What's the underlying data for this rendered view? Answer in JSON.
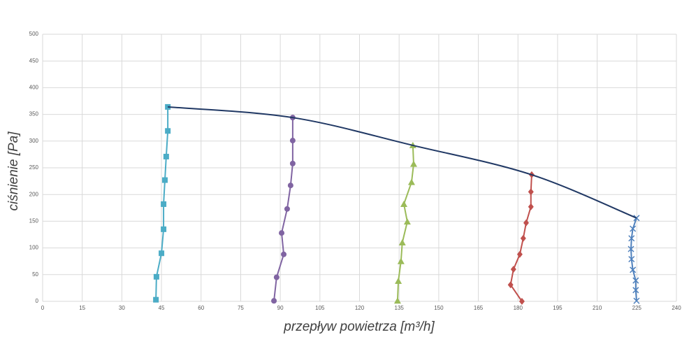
{
  "chart_data": {
    "type": "scatter",
    "xlabel": "przepływ powietrza [m³/h]",
    "ylabel": "ciśnienie [Pa]",
    "xlim": [
      0,
      240
    ],
    "ylim": [
      0,
      500
    ],
    "xticks": [
      0,
      15,
      30,
      45,
      60,
      75,
      90,
      105,
      120,
      135,
      150,
      165,
      180,
      195,
      210,
      225,
      240
    ],
    "yticks": [
      0,
      50,
      100,
      150,
      200,
      250,
      300,
      350,
      400,
      450,
      500
    ],
    "grid": true,
    "series": [
      {
        "color": "#4bacc6",
        "marker": "square",
        "x": [
          42.9,
          43.1,
          45,
          45.8,
          45.8,
          46.3,
          46.8,
          47.4,
          47.4
        ],
        "values": [
          3,
          46,
          90,
          135,
          182,
          227,
          271,
          319,
          364
        ]
      },
      {
        "color": "#8064a2",
        "marker": "circle",
        "x": [
          87.6,
          88.6,
          91.3,
          90.5,
          92.6,
          93.9,
          94.7,
          94.7,
          94.7
        ],
        "values": [
          1,
          45,
          88,
          128,
          173,
          217,
          258,
          301,
          344
        ]
      },
      {
        "color": "#9bbb59",
        "marker": "triangle",
        "x": [
          134.4,
          134.7,
          135.7,
          136.2,
          138.1,
          136.8,
          139.7,
          140.5,
          140.2
        ],
        "values": [
          1,
          38,
          75,
          110,
          149,
          182,
          223,
          257,
          292
        ]
      },
      {
        "color": "#c0504d",
        "marker": "diamond",
        "x": [
          181.5,
          177.2,
          178.3,
          180.7,
          182,
          183.1,
          184.9,
          184.9,
          185.2
        ],
        "values": [
          0,
          31,
          60,
          88,
          118,
          147,
          177,
          205,
          237
        ]
      },
      {
        "color": "#4f81bd",
        "marker": "x",
        "x": [
          224.9,
          224.6,
          224.6,
          223.5,
          223,
          222.8,
          223,
          223.5,
          224.9
        ],
        "values": [
          1,
          21,
          39,
          59,
          79,
          98,
          118,
          136,
          156
        ]
      },
      {
        "color": "#203864",
        "marker": "none",
        "smooth": true,
        "x": [
          47.4,
          94.7,
          140.2,
          185.2,
          224.9
        ],
        "values": [
          364,
          344,
          292,
          237,
          156
        ]
      }
    ]
  }
}
